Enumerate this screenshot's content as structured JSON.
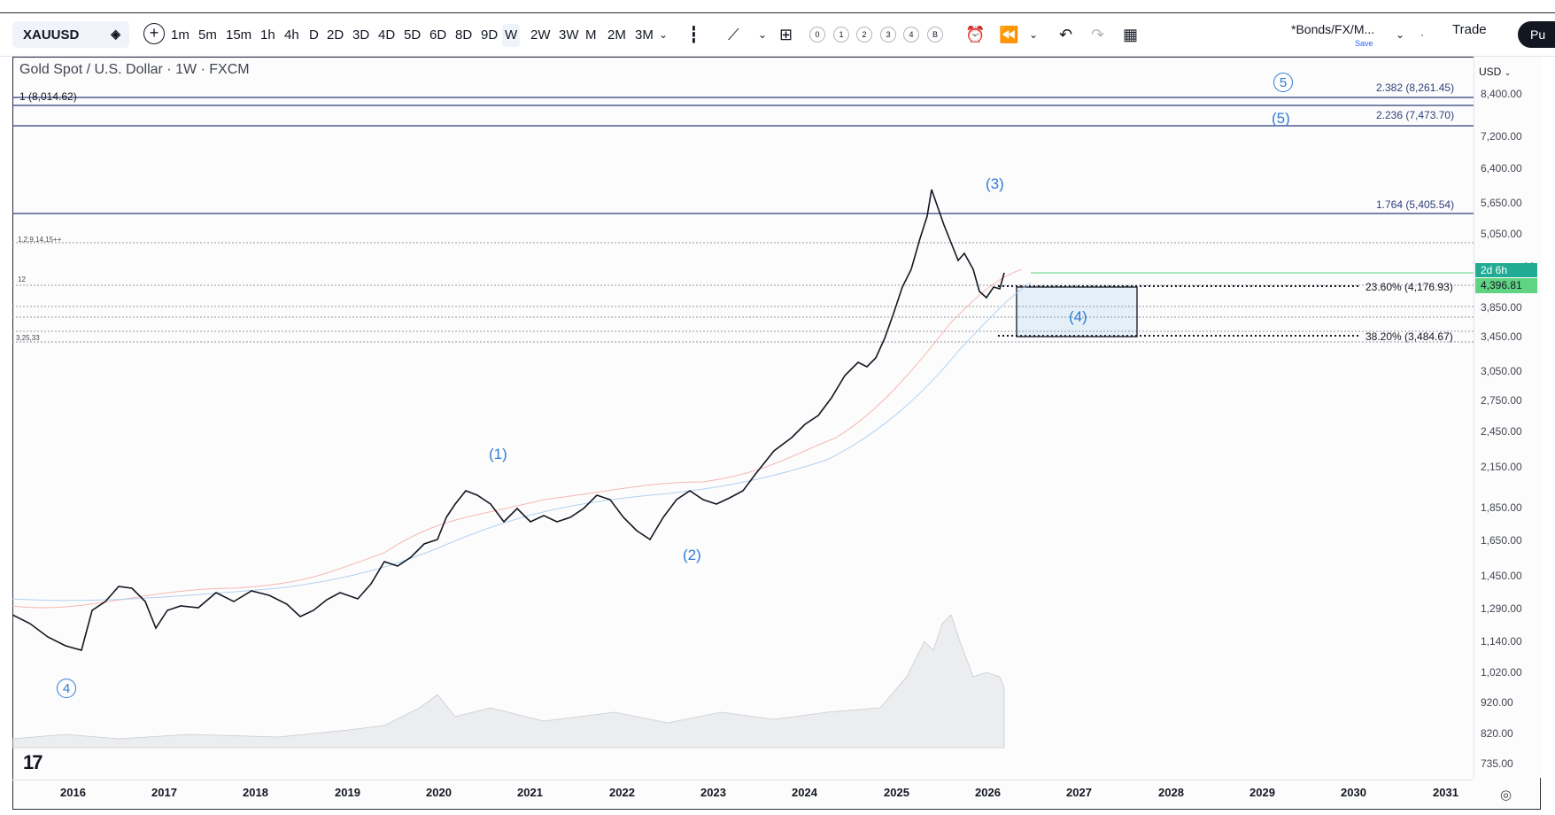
{
  "toolbar": {
    "symbol": "XAUUSD",
    "timeframes": [
      "1m",
      "5m",
      "15m",
      "1h",
      "4h",
      "D",
      "2D",
      "3D",
      "4D",
      "5D",
      "6D",
      "8D",
      "9D",
      "W",
      "2W",
      "3W",
      "M",
      "2M",
      "3M"
    ],
    "active_timeframe": "W",
    "indicator_counts": [
      "0",
      "1",
      "2",
      "3",
      "4",
      "B"
    ],
    "layout_name": "*Bonds/FX/M...",
    "layout_save": "Save",
    "trade_label": "Trade",
    "publish_label": "Pu"
  },
  "chart": {
    "title": "Gold Spot / U.S. Dollar · 1W · FXCM",
    "currency": "USD",
    "price_ticks": [
      "8,400.00",
      "7,200.00",
      "6,400.00",
      "5,650.00",
      "5,050.00",
      "3,850.00",
      "3,450.00",
      "3,050.00",
      "2,750.00",
      "2,450.00",
      "2,150.00",
      "1,850.00",
      "1,650.00",
      "1,450.00",
      "1,290.00",
      "1,140.00",
      "1,020.00",
      "920.00",
      "820.00",
      "735.00"
    ],
    "partial_tick": "00",
    "countdown": "2d 6h",
    "last_price": "4,396.81",
    "years": [
      "2016",
      "2017",
      "2018",
      "2019",
      "2020",
      "2021",
      "2022",
      "2023",
      "2024",
      "2025",
      "2026",
      "2027",
      "2028",
      "2029",
      "2030",
      "2031"
    ],
    "fib_levels": {
      "top_left": "1 (8,014.62)",
      "l2382": "2.382 (8,261.45)",
      "l2236": "2.236 (7,473.70)",
      "l1764": "1.764 (5,405.54)",
      "l236": "23.60% (4,176.93)",
      "l382": "38.20% (3,484.67)"
    },
    "mini_labels": {
      "a": "1,2,9,14,15++",
      "b": "12",
      "c": "3,25,33"
    },
    "waves": {
      "w1": "(1)",
      "w2": "(2)",
      "w3": "(3)",
      "w4": "(4)",
      "w5": "(5)",
      "c4": "4",
      "c5": "5"
    },
    "colors": {
      "fib_line": "#2c3e7a",
      "wave_label": "#2e7cd6",
      "candles": "#131722",
      "countdown": "#22ab94",
      "last_price": "#5fd483"
    }
  }
}
